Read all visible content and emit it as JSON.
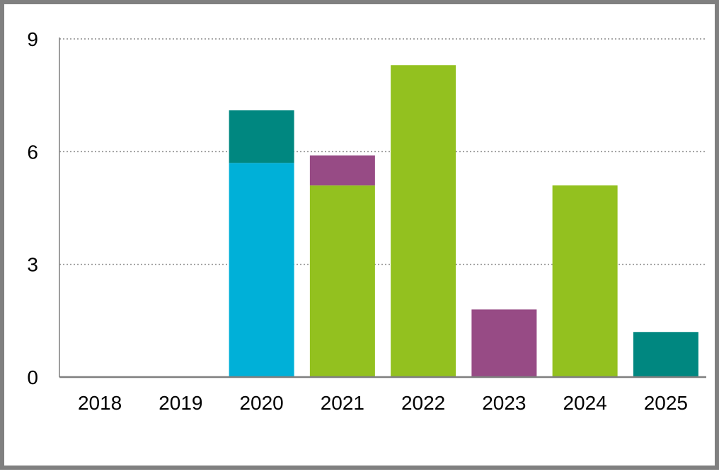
{
  "chart_data": {
    "type": "bar",
    "stacked": true,
    "categories": [
      "2018",
      "2019",
      "2020",
      "2021",
      "2022",
      "2023",
      "2024",
      "2025"
    ],
    "series": [
      {
        "color": "#00b0d8",
        "values": [
          0,
          0,
          5.7,
          0,
          0,
          0,
          0,
          0
        ]
      },
      {
        "color": "#93c11f",
        "values": [
          0,
          0,
          0,
          5.1,
          8.3,
          0,
          5.1,
          0
        ]
      },
      {
        "color": "#008780",
        "values": [
          0,
          0,
          1.4,
          0,
          0,
          0,
          0,
          1.2
        ]
      },
      {
        "color": "#974b85",
        "values": [
          0,
          0,
          0,
          0.8,
          0,
          1.8,
          0,
          0
        ]
      }
    ],
    "yticks": [
      "0",
      "3",
      "6",
      "9"
    ],
    "ylim": [
      0,
      9
    ],
    "grid": true,
    "legend": "none"
  }
}
